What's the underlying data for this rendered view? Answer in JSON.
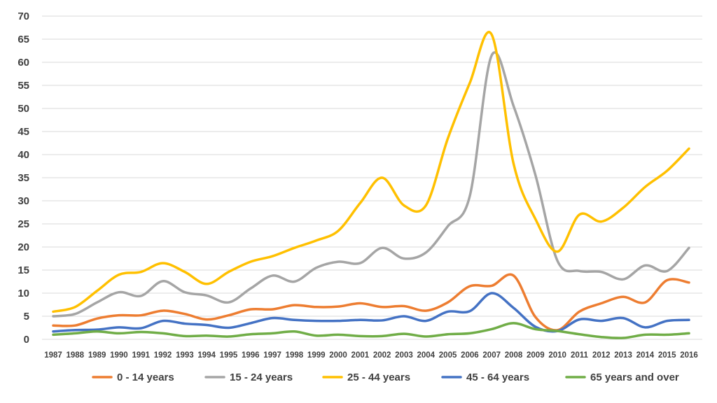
{
  "chart_data": {
    "type": "line",
    "title": "",
    "xlabel": "",
    "ylabel": "",
    "ylim": [
      0,
      70
    ],
    "yticks": [
      0,
      5,
      10,
      15,
      20,
      25,
      30,
      35,
      40,
      45,
      50,
      55,
      60,
      65,
      70
    ],
    "grid": "horizontal",
    "legend_position": "bottom",
    "x": [
      1987,
      1988,
      1989,
      1990,
      1991,
      1992,
      1993,
      1994,
      1995,
      1996,
      1997,
      1998,
      1999,
      2000,
      2001,
      2002,
      2003,
      2004,
      2005,
      2006,
      2007,
      2008,
      2009,
      2010,
      2011,
      2012,
      2013,
      2014,
      2015,
      2016
    ],
    "series": [
      {
        "name": "0 - 14 years",
        "color": "#ED7D31",
        "values": [
          3,
          3,
          4.5,
          5.2,
          5.2,
          6.2,
          5.5,
          4.3,
          5.2,
          6.5,
          6.5,
          7.4,
          7,
          7.1,
          7.8,
          7,
          7.2,
          6.2,
          8,
          11.5,
          11.6,
          13.8,
          4.8,
          2,
          6,
          7.8,
          9.2,
          8,
          12.8,
          12.3
        ]
      },
      {
        "name": "15 - 24 years",
        "color": "#A5A5A5",
        "values": [
          5,
          5.5,
          8,
          10.2,
          9.4,
          12.6,
          10.2,
          9.5,
          8,
          11,
          13.8,
          12.5,
          15.5,
          16.8,
          16.5,
          19.8,
          17.5,
          18.8,
          24.5,
          31,
          61.5,
          50.5,
          35.5,
          17,
          14.8,
          14.6,
          13,
          16,
          14.8,
          19.8
        ]
      },
      {
        "name": "25 - 44 years",
        "color": "#FFC000",
        "values": [
          6,
          7,
          10.5,
          14,
          14.6,
          16.5,
          14.6,
          12,
          14.6,
          16.8,
          18,
          19.8,
          21.4,
          23.5,
          29.5,
          35,
          29,
          29,
          43.5,
          55.5,
          66,
          38,
          26,
          19,
          27,
          25.5,
          28.5,
          33,
          36.5,
          41.3
        ]
      },
      {
        "name": "45 - 64 years",
        "color": "#4472C4",
        "values": [
          1.7,
          2,
          2.1,
          2.6,
          2.4,
          4,
          3.4,
          3.1,
          2.5,
          3.5,
          4.6,
          4.2,
          4,
          4,
          4.2,
          4.1,
          5,
          4,
          6,
          6.1,
          10,
          6.8,
          2.7,
          1.8,
          4.3,
          4,
          4.6,
          2.6,
          4,
          4.2
        ]
      },
      {
        "name": "65 years and over",
        "color": "#70AD47",
        "values": [
          1,
          1.3,
          1.7,
          1.3,
          1.6,
          1.3,
          0.7,
          0.8,
          0.6,
          1.1,
          1.3,
          1.7,
          0.8,
          1,
          0.7,
          0.7,
          1.2,
          0.6,
          1.1,
          1.3,
          2.2,
          3.5,
          2.2,
          1.8,
          1.1,
          0.5,
          0.3,
          1,
          1,
          1.3
        ]
      }
    ]
  }
}
